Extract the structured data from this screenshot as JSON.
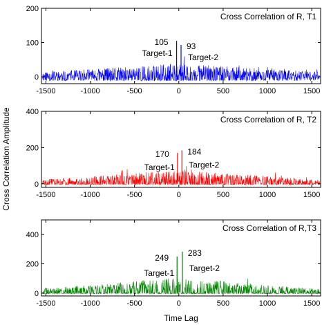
{
  "figure": {
    "ylabel": "Cross Correlation Amplitude",
    "xlabel": "Time Lag"
  },
  "chart_data": [
    {
      "type": "line",
      "title": "Cross Correlation of R, T1",
      "color": "#0000ff",
      "xlim": [
        -1550,
        1600
      ],
      "ylim": [
        -20,
        200
      ],
      "x_ticks": [
        -1500,
        -1000,
        -500,
        0,
        500,
        1000,
        1500
      ],
      "y_ticks": [
        0,
        100,
        200
      ],
      "noise": {
        "base": 16,
        "center_extra": 28,
        "floor": -12,
        "seed": 11
      },
      "peaks": [
        {
          "x": -25,
          "y": 105,
          "value_label": "105",
          "target_label": "Target-1"
        },
        {
          "x": 25,
          "y": 93,
          "value_label": "93",
          "target_label": "Target-2"
        }
      ]
    },
    {
      "type": "line",
      "title": "Cross Correlation of R, T2",
      "color": "#ff0000",
      "xlim": [
        -1550,
        1600
      ],
      "ylim": [
        -20,
        400
      ],
      "x_ticks": [
        -1500,
        -1000,
        -500,
        0,
        500,
        1000,
        1500
      ],
      "y_ticks": [
        0,
        200,
        400
      ],
      "noise": {
        "base": 26,
        "center_extra": 62,
        "floor": -5,
        "seed": 23
      },
      "peaks": [
        {
          "x": -15,
          "y": 170,
          "value_label": "170",
          "target_label": "Target-1"
        },
        {
          "x": 35,
          "y": 184,
          "value_label": "184",
          "target_label": "Target-2"
        }
      ]
    },
    {
      "type": "line",
      "title": "Cross Correlation of R,T3",
      "color": "#008000",
      "xlim": [
        -1550,
        1600
      ],
      "ylim": [
        -20,
        500
      ],
      "x_ticks": [
        -1500,
        -1000,
        -500,
        0,
        500,
        1000,
        1500
      ],
      "y_ticks": [
        0,
        200,
        400
      ],
      "noise": {
        "base": 34,
        "center_extra": 85,
        "floor": -5,
        "seed": 37
      },
      "peaks": [
        {
          "x": -20,
          "y": 249,
          "value_label": "249",
          "target_label": "Target-1"
        },
        {
          "x": 40,
          "y": 283,
          "value_label": "283",
          "target_label": "Target-2"
        }
      ]
    }
  ]
}
